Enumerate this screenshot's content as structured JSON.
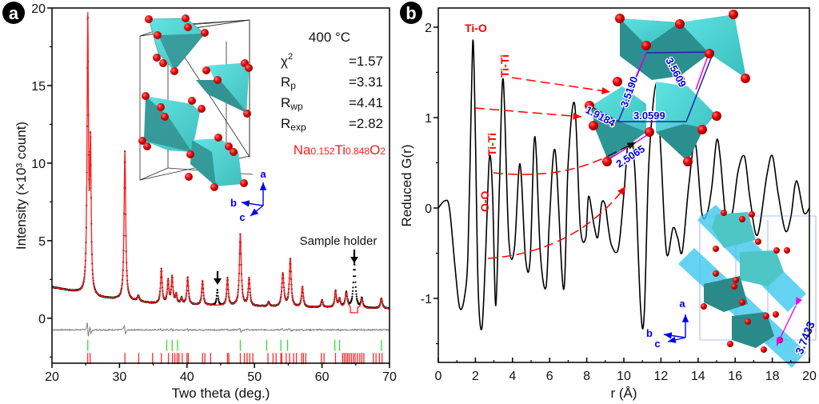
{
  "chart_data": [
    {
      "panel": "a",
      "type": "line",
      "title": "",
      "xlabel": "Two theta (deg.)",
      "ylabel": "Intensity (×10³ count)",
      "xlim": [
        20,
        70
      ],
      "ylim": [
        -2.9,
        20
      ],
      "xticks": [
        20,
        30,
        40,
        50,
        60,
        70
      ],
      "yticks": [
        0,
        5,
        10,
        15,
        20
      ],
      "grid": false,
      "background": {
        "x": [
          20,
          24,
          26,
          30,
          35,
          45,
          55,
          70
        ],
        "y": [
          2.0,
          1.65,
          1.35,
          1.2,
          0.95,
          0.8,
          0.72,
          0.62
        ]
      },
      "peaks": [
        {
          "x": 25.3,
          "h": 17.6,
          "w": 0.12
        },
        {
          "x": 25.7,
          "h": 9.2,
          "w": 0.12
        },
        {
          "x": 30.8,
          "h": 9.6,
          "w": 0.14
        },
        {
          "x": 32.8,
          "h": 0.35,
          "w": 0.18
        },
        {
          "x": 36.2,
          "h": 2.2,
          "w": 0.14
        },
        {
          "x": 37.2,
          "h": 1.45,
          "w": 0.14
        },
        {
          "x": 37.8,
          "h": 1.7,
          "w": 0.14
        },
        {
          "x": 38.4,
          "h": 0.6,
          "w": 0.14
        },
        {
          "x": 39.2,
          "h": 0.4,
          "w": 0.14
        },
        {
          "x": 40.1,
          "h": 1.75,
          "w": 0.14
        },
        {
          "x": 42.3,
          "h": 1.55,
          "w": 0.14
        },
        {
          "x": 46.0,
          "h": 1.75,
          "w": 0.14
        },
        {
          "x": 47.9,
          "h": 4.65,
          "w": 0.16
        },
        {
          "x": 49.2,
          "h": 1.75,
          "w": 0.15
        },
        {
          "x": 52.1,
          "h": 0.3,
          "w": 0.15
        },
        {
          "x": 54.2,
          "h": 2.1,
          "w": 0.18
        },
        {
          "x": 55.3,
          "h": 3.1,
          "w": 0.16
        },
        {
          "x": 57.1,
          "h": 1.3,
          "w": 0.15
        },
        {
          "x": 60.0,
          "h": 0.45,
          "w": 0.15
        },
        {
          "x": 62.0,
          "h": 1.05,
          "w": 0.15
        },
        {
          "x": 62.6,
          "h": 0.55,
          "w": 0.15
        },
        {
          "x": 63.6,
          "h": 0.95,
          "w": 0.18
        },
        {
          "x": 65.9,
          "h": 0.6,
          "w": 0.15
        },
        {
          "x": 68.8,
          "h": 0.65,
          "w": 0.16
        }
      ],
      "unfit_peaks": [
        {
          "x": 44.5,
          "h": 1.0,
          "w": 0.12,
          "label": ""
        },
        {
          "x": 64.8,
          "h": 2.9,
          "w": 0.18,
          "label": "Sample holder"
        }
      ],
      "excluded_regions": [
        [
          64.2,
          65.3
        ]
      ],
      "series": [
        {
          "name": "Observed",
          "style": "black dots"
        },
        {
          "name": "Calculated",
          "style": "red line"
        },
        {
          "name": "Difference",
          "style": "grey line",
          "offset": -0.75
        },
        {
          "name": "Bragg positions phase 1",
          "style": "green ticks",
          "level": -1.75,
          "x": [
            25.3,
            37.0,
            37.8,
            38.6,
            47.9,
            51.8,
            53.9,
            54.9,
            61.9,
            62.6,
            68.8
          ]
        },
        {
          "name": "Bragg positions phase 2",
          "style": "red ticks",
          "level": -2.6,
          "x": [
            25.3,
            25.65,
            30.8,
            32.85,
            34.9,
            36.2,
            37.25,
            37.85,
            38.2,
            38.55,
            38.8,
            39.3,
            40.0,
            40.2,
            42.3,
            42.65,
            43.5,
            46.0,
            46.2,
            47.9,
            48.5,
            48.9,
            49.3,
            49.75,
            52.0,
            52.75,
            53.2,
            53.9,
            54.05,
            54.7,
            55.2,
            55.8,
            56.2,
            57.0,
            57.25,
            57.6,
            59.9,
            60.3,
            62.0,
            63.05,
            63.3,
            63.55,
            63.8,
            64.05,
            64.35,
            64.65,
            64.9,
            65.25,
            65.6,
            65.9,
            66.2,
            67.6,
            68.0,
            68.5,
            68.9
          ]
        }
      ],
      "annotations": {
        "temperature": "400 °C",
        "stats": [
          {
            "sym": "χ",
            "sup": "2",
            "sub": "",
            "value": "=1.57"
          },
          {
            "sym": "R",
            "sup": "",
            "sub": "p",
            "value": "=3.31"
          },
          {
            "sym": "R",
            "sup": "",
            "sub": "wp",
            "value": "=4.41"
          },
          {
            "sym": "R",
            "sup": "",
            "sub": "exp",
            "value": "=2.82"
          }
        ],
        "formula": [
          {
            "t": "Na",
            "s": false
          },
          {
            "t": "0.152",
            "s": true
          },
          {
            "t": "Ti",
            "s": false
          },
          {
            "t": "0.848",
            "s": true
          },
          {
            "t": "O",
            "s": false
          },
          {
            "t": "2",
            "s": true
          }
        ],
        "sample_holder": "Sample holder",
        "axes_labels": {
          "a": "a",
          "b": "b",
          "c": "c"
        }
      }
    },
    {
      "panel": "b",
      "type": "line",
      "title": "",
      "xlabel": "r (Å)",
      "ylabel": "Reduced G(r)",
      "xlim": [
        0,
        20
      ],
      "ylim": [
        -1.71,
        2.2
      ],
      "xticks": [
        0,
        2,
        4,
        6,
        8,
        10,
        12,
        14,
        16,
        18,
        20
      ],
      "yticks": [
        -1,
        0,
        1,
        2
      ],
      "grid": false,
      "series": [
        {
          "name": "G(r)",
          "x": [
            0,
            0.35,
            0.6,
            0.9,
            1.15,
            1.4,
            1.6,
            1.78,
            1.88,
            2.0,
            2.15,
            2.35,
            2.55,
            2.75,
            2.92,
            3.1,
            3.3,
            3.5,
            3.8,
            4.1,
            4.4,
            4.7,
            4.95,
            5.2,
            5.5,
            5.8,
            6.0,
            6.3,
            6.75,
            7.0,
            7.35,
            7.65,
            7.95,
            8.1,
            8.4,
            8.6,
            8.8,
            9.0,
            9.15,
            9.35,
            9.7,
            10.0,
            10.3,
            10.6,
            10.9,
            11.1,
            11.35,
            11.75,
            12.0,
            12.3,
            12.65,
            12.9,
            13.15,
            13.5,
            13.85,
            14.2,
            14.5,
            14.75,
            15.0,
            15.2,
            15.5,
            15.85,
            16.15,
            16.5,
            16.8,
            17.2,
            17.7,
            18.0,
            18.3,
            18.7,
            19.0,
            19.3,
            19.7,
            20.0
          ],
          "y": [
            0.0,
            0.08,
            0.0,
            -0.65,
            -1.1,
            -1.0,
            -0.5,
            1.2,
            1.85,
            0.8,
            -0.9,
            -1.33,
            -0.5,
            0.55,
            0.2,
            -1.08,
            0.3,
            1.42,
            -0.35,
            -0.45,
            0.49,
            -0.55,
            -0.57,
            0.79,
            -0.5,
            -0.88,
            -0.1,
            0.63,
            -0.9,
            0.5,
            1.15,
            -0.2,
            -0.33,
            0.13,
            -0.2,
            -0.32,
            0.05,
            0.03,
            -0.2,
            -0.42,
            -0.45,
            0.15,
            0.85,
            0.4,
            -1.1,
            -1.17,
            0.5,
            1.38,
            0.6,
            -0.5,
            -0.22,
            -0.33,
            -0.48,
            0.25,
            0.72,
            -0.05,
            -0.05,
            0.25,
            0.75,
            0.55,
            -0.1,
            -0.05,
            0.4,
            0.57,
            0.1,
            -0.3,
            0.35,
            0.58,
            0.18,
            -0.25,
            -0.1,
            0.3,
            -0.05,
            0.0
          ]
        }
      ],
      "annotations": {
        "peak_labels": [
          {
            "text": "Ti-O",
            "color": "#ff0000"
          },
          {
            "text": "Ti-Ti",
            "color": "#ff0000"
          },
          {
            "text": "Ti-Ti",
            "color": "#ff0000"
          },
          {
            "text": "O-O",
            "color": "#ff0000"
          }
        ],
        "distances": [
          "3.5190",
          "3.5609",
          "1.9184",
          "3.0599",
          "2.5065",
          "3.7433"
        ],
        "axes_labels": {
          "a": "a",
          "b": "b",
          "c": "c"
        }
      }
    }
  ],
  "panel_labels": {
    "a": "a",
    "b": "b"
  },
  "colors": {
    "observed": "#000000",
    "calculated": "#ff1a1a",
    "difference": "#808080",
    "bragg1": "#33dd33",
    "bragg2": "#ff2a2a",
    "gr": "#000000",
    "octa_light": "#4fd6d6",
    "octa_dark": "#2a8a8a",
    "oxygen": "#ee0000",
    "distance_text": "#0000ee",
    "bond_line": "#ee00ee",
    "plane": "#3cc8ee"
  }
}
